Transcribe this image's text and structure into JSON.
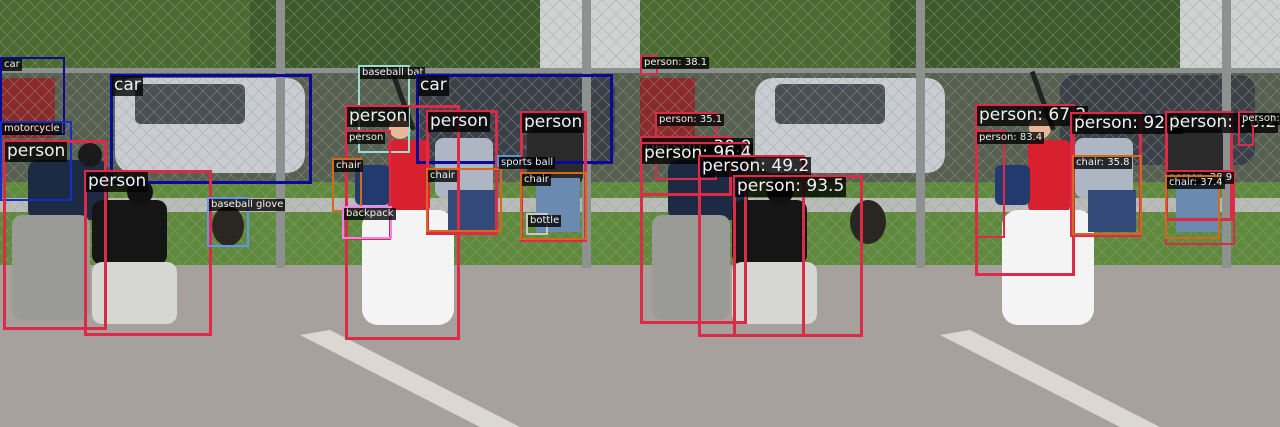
{
  "colors": {
    "person": "#dc2a47",
    "car": "#0a0a96",
    "motorcycle": "#1030c8",
    "chair": "#d2691e",
    "sports_ball": "#5096dc",
    "bottle": "#c8c8c8",
    "backpack": "#ee82ee",
    "baseball_bat": "#9adcd0",
    "baseball_glove": "#6495ed"
  },
  "ground_truth": {
    "labels": [
      {
        "text": "car",
        "cls": "car",
        "size": "small"
      },
      {
        "text": "car",
        "cls": "car",
        "size": "big"
      },
      {
        "text": "baseball bat",
        "cls": "baseball_bat",
        "size": "small"
      },
      {
        "text": "car",
        "cls": "car",
        "size": "big"
      },
      {
        "text": "motorcycle",
        "cls": "motorcycle",
        "size": "small"
      },
      {
        "text": "person",
        "cls": "person",
        "size": "big"
      },
      {
        "text": "person",
        "cls": "person",
        "size": "big"
      },
      {
        "text": "person",
        "cls": "person",
        "size": "big"
      },
      {
        "text": "person",
        "cls": "person",
        "size": "small"
      },
      {
        "text": "person",
        "cls": "person",
        "size": "big"
      },
      {
        "text": "person",
        "cls": "person",
        "size": "big"
      },
      {
        "text": "chair",
        "cls": "chair",
        "size": "small"
      },
      {
        "text": "chair",
        "cls": "chair",
        "size": "small"
      },
      {
        "text": "chair",
        "cls": "chair",
        "size": "small"
      },
      {
        "text": "sports ball",
        "cls": "sports_ball",
        "size": "small"
      },
      {
        "text": "baseball glove",
        "cls": "baseball_glove",
        "size": "small"
      },
      {
        "text": "backpack",
        "cls": "backpack",
        "size": "small"
      },
      {
        "text": "bottle",
        "cls": "bottle",
        "size": "small"
      }
    ]
  },
  "predictions": {
    "labels": [
      {
        "text": "person: 38.1",
        "cls": "person",
        "size": "small"
      },
      {
        "text": "person: 35.1",
        "cls": "person",
        "size": "small"
      },
      {
        "text": "person: 30.0",
        "cls": "person",
        "size": "big"
      },
      {
        "text": "person: 96.4",
        "cls": "person",
        "size": "big"
      },
      {
        "text": "person: 49.2",
        "cls": "person",
        "size": "big"
      },
      {
        "text": "person: 93.5",
        "cls": "person",
        "size": "big"
      },
      {
        "text": "person: 67.2",
        "cls": "person",
        "size": "big"
      },
      {
        "text": "person: 83.4",
        "cls": "person",
        "size": "small"
      },
      {
        "text": "person: 92.1",
        "cls": "person",
        "size": "big"
      },
      {
        "text": "person: 76.2",
        "cls": "person",
        "size": "big"
      },
      {
        "text": "person:",
        "cls": "person",
        "size": "small"
      },
      {
        "text": "chair: 35.8",
        "cls": "chair",
        "size": "small"
      },
      {
        "text": "person: 28.9",
        "cls": "person",
        "size": "small"
      },
      {
        "text": "chair: 37.4",
        "cls": "chair",
        "size": "small"
      }
    ]
  }
}
